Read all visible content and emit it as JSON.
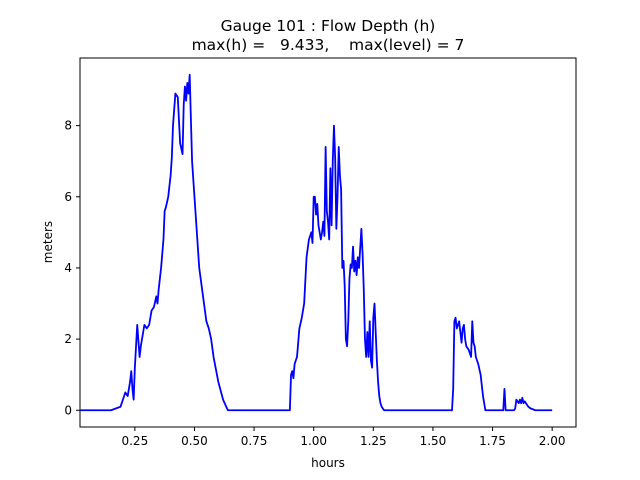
{
  "chart_data": {
    "type": "line",
    "title": "Gauge 101 : Flow Depth (h)",
    "subtitle": "max(h) =   9.433,    max(level) = 7",
    "xlabel": "hours",
    "ylabel": "meters",
    "xlim": [
      0.02,
      2.1
    ],
    "ylim": [
      -0.47,
      9.9
    ],
    "xticks": [
      0.25,
      0.5,
      0.75,
      1.0,
      1.25,
      1.5,
      1.75,
      2.0
    ],
    "xtick_labels": [
      "0.25",
      "0.50",
      "0.75",
      "1.00",
      "1.25",
      "1.50",
      "1.75",
      "2.00"
    ],
    "yticks": [
      0,
      2,
      4,
      6,
      8
    ],
    "ytick_labels": [
      "0",
      "2",
      "4",
      "6",
      "8"
    ],
    "grid": false,
    "series": [
      {
        "color": "#0000ff",
        "x": [
          0.02,
          0.15,
          0.17,
          0.19,
          0.2,
          0.21,
          0.22,
          0.23,
          0.235,
          0.24,
          0.245,
          0.25,
          0.26,
          0.27,
          0.275,
          0.28,
          0.29,
          0.3,
          0.31,
          0.32,
          0.33,
          0.34,
          0.345,
          0.35,
          0.36,
          0.37,
          0.375,
          0.38,
          0.39,
          0.4,
          0.405,
          0.41,
          0.42,
          0.43,
          0.44,
          0.45,
          0.455,
          0.46,
          0.465,
          0.47,
          0.475,
          0.48,
          0.485,
          0.49,
          0.5,
          0.51,
          0.52,
          0.53,
          0.54,
          0.55,
          0.56,
          0.57,
          0.58,
          0.6,
          0.62,
          0.64,
          0.9,
          0.905,
          0.91,
          0.915,
          0.92,
          0.93,
          0.94,
          0.95,
          0.96,
          0.97,
          0.98,
          0.99,
          0.995,
          1.0,
          1.005,
          1.01,
          1.015,
          1.02,
          1.03,
          1.035,
          1.04,
          1.045,
          1.05,
          1.055,
          1.06,
          1.065,
          1.07,
          1.075,
          1.08,
          1.085,
          1.09,
          1.095,
          1.1,
          1.105,
          1.11,
          1.115,
          1.12,
          1.125,
          1.13,
          1.135,
          1.14,
          1.145,
          1.15,
          1.155,
          1.16,
          1.165,
          1.17,
          1.175,
          1.18,
          1.185,
          1.19,
          1.2,
          1.205,
          1.21,
          1.215,
          1.22,
          1.225,
          1.23,
          1.235,
          1.24,
          1.245,
          1.25,
          1.255,
          1.26,
          1.265,
          1.27,
          1.275,
          1.28,
          1.285,
          1.29,
          1.295,
          1.3,
          1.31,
          1.33,
          1.58,
          1.585,
          1.59,
          1.595,
          1.6,
          1.61,
          1.62,
          1.625,
          1.63,
          1.635,
          1.64,
          1.65,
          1.66,
          1.665,
          1.67,
          1.675,
          1.68,
          1.69,
          1.7,
          1.71,
          1.72,
          1.79,
          1.795,
          1.8,
          1.805,
          1.81,
          1.82,
          1.84,
          1.845,
          1.85,
          1.86,
          1.865,
          1.87,
          1.875,
          1.88,
          1.885,
          1.89,
          1.9,
          1.91,
          1.93,
          2.0
        ],
        "y": [
          0.0,
          0.0,
          0.05,
          0.1,
          0.3,
          0.5,
          0.4,
          0.8,
          1.1,
          0.6,
          0.3,
          1.2,
          2.4,
          1.5,
          1.8,
          2.0,
          2.4,
          2.3,
          2.4,
          2.8,
          2.9,
          3.2,
          3.0,
          3.4,
          4.0,
          4.8,
          5.6,
          5.7,
          6.0,
          6.6,
          7.1,
          8.0,
          8.9,
          8.8,
          7.5,
          7.2,
          8.6,
          9.1,
          8.7,
          9.2,
          8.9,
          9.43,
          8.2,
          7.0,
          6.0,
          5.0,
          4.0,
          3.5,
          3.0,
          2.5,
          2.3,
          2.0,
          1.5,
          0.8,
          0.3,
          0.0,
          0.0,
          1.0,
          1.1,
          0.9,
          1.3,
          1.5,
          2.3,
          2.6,
          3.0,
          4.3,
          4.8,
          5.0,
          4.7,
          6.0,
          6.0,
          5.5,
          5.8,
          5.2,
          4.8,
          5.0,
          5.3,
          4.9,
          7.4,
          5.6,
          5.3,
          4.8,
          6.8,
          5.2,
          7.0,
          8.0,
          7.1,
          5.1,
          6.0,
          7.4,
          6.6,
          6.2,
          4.0,
          4.2,
          3.5,
          2.0,
          1.8,
          2.5,
          3.7,
          4.1,
          4.0,
          4.6,
          3.9,
          4.2,
          3.8,
          4.3,
          4.0,
          5.1,
          4.4,
          3.4,
          2.0,
          1.5,
          2.2,
          1.5,
          2.5,
          1.4,
          1.2,
          2.6,
          3.0,
          2.2,
          1.4,
          0.8,
          0.4,
          0.2,
          0.1,
          0.05,
          0.0,
          0.0,
          0.0,
          0.0,
          0.0,
          0.6,
          2.5,
          2.6,
          2.3,
          2.5,
          1.9,
          2.3,
          2.4,
          2.0,
          1.8,
          1.7,
          1.5,
          2.5,
          1.9,
          1.8,
          1.5,
          1.3,
          1.0,
          0.4,
          0.0,
          0.0,
          0.0,
          0.6,
          0.0,
          0.0,
          0.0,
          0.0,
          0.05,
          0.3,
          0.2,
          0.3,
          0.2,
          0.35,
          0.2,
          0.25,
          0.2,
          0.1,
          0.05,
          0.0,
          0.0
        ]
      }
    ]
  }
}
